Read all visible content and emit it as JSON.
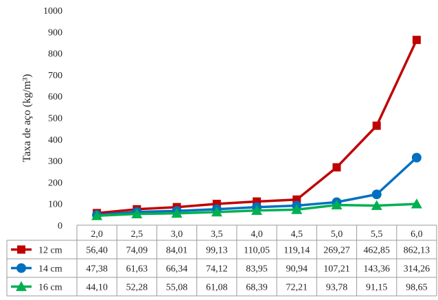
{
  "chart_data": {
    "type": "line",
    "ylabel": "Taxa de aço (kg/m³)",
    "xlabel": "",
    "ylim": [
      0,
      1000
    ],
    "yticks": [
      0,
      100,
      200,
      300,
      400,
      500,
      600,
      700,
      800,
      900,
      1000
    ],
    "categories": [
      "2,0",
      "2,5",
      "3,0",
      "3,5",
      "4,0",
      "4,5",
      "5,0",
      "5,5",
      "6,0"
    ],
    "grid": false,
    "legend": "data-table-below",
    "series": [
      {
        "name": "12 cm",
        "color": "#c00000",
        "marker": "square",
        "values": [
          56.4,
          74.09,
          84.01,
          99.13,
          110.05,
          119.14,
          269.27,
          462.85,
          862.13
        ],
        "labels": [
          "56,40",
          "74,09",
          "84,01",
          "99,13",
          "110,05",
          "119,14",
          "269,27",
          "462,85",
          "862,13"
        ]
      },
      {
        "name": "14 cm",
        "color": "#0070c0",
        "marker": "circle",
        "values": [
          47.38,
          61.63,
          66.34,
          74.12,
          83.95,
          90.94,
          107.21,
          143.36,
          314.26
        ],
        "labels": [
          "47,38",
          "61,63",
          "66,34",
          "74,12",
          "83,95",
          "90,94",
          "107,21",
          "143,36",
          "314,26"
        ]
      },
      {
        "name": "16 cm",
        "color": "#00b050",
        "marker": "triangle",
        "values": [
          44.1,
          52.28,
          55.08,
          61.08,
          68.39,
          72.21,
          93.78,
          91.15,
          98.65
        ],
        "labels": [
          "44,10",
          "52,28",
          "55,08",
          "61,08",
          "68,39",
          "72,21",
          "93,78",
          "91,15",
          "98,65"
        ]
      }
    ]
  }
}
